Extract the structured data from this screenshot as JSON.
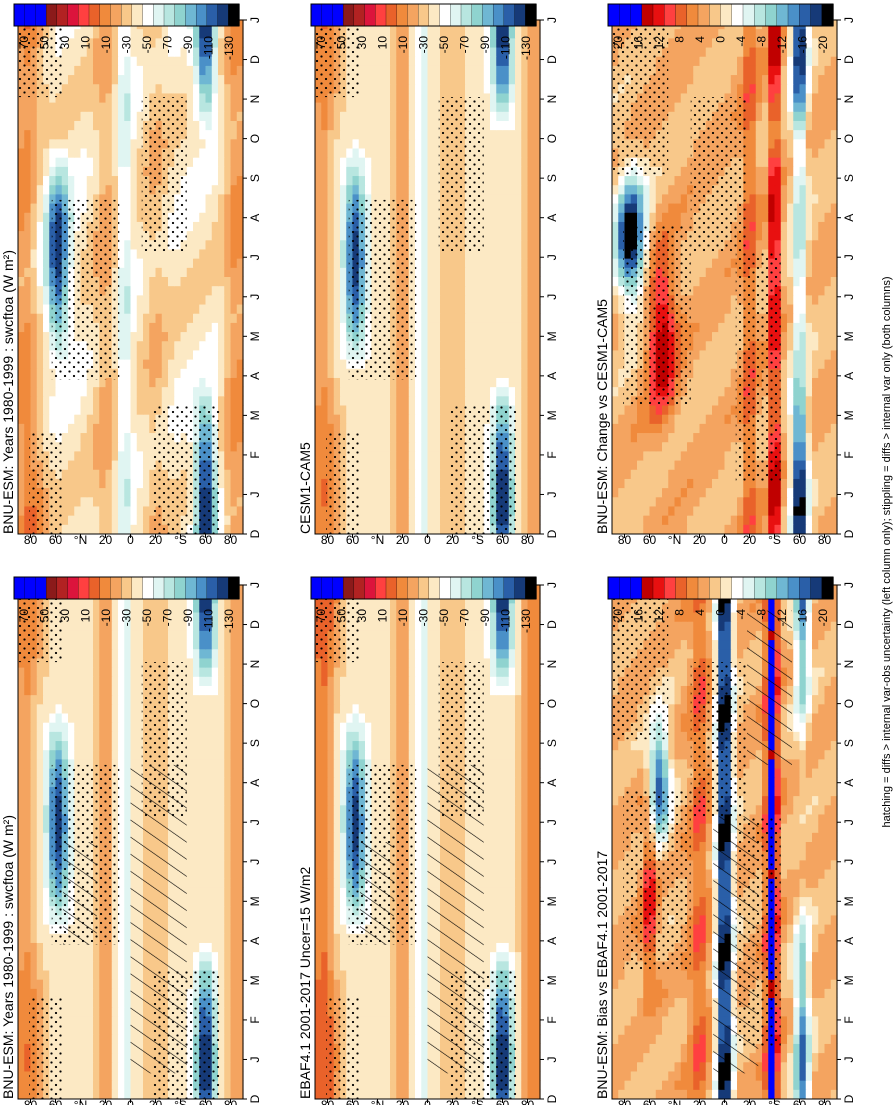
{
  "figure": {
    "footnote": "hatching = diffs > internal var-obs uncertainty (left column only); stippling = diffs > internal var only (both columns)"
  },
  "colors": {
    "abs_palette": [
      "#0000FF",
      "#0000FF",
      "#0000FF",
      "#8B1A1A",
      "#B22222",
      "#DC143C",
      "#FF4040",
      "#E9622A",
      "#F08A3C",
      "#F4A460",
      "#F8C88A",
      "#FCE9C4",
      "#FFFFFF",
      "#E0F5F2",
      "#B8E6E0",
      "#8FD3CF",
      "#6FB7D3",
      "#4A90C8",
      "#2A5FA8",
      "#163A78",
      "#000000"
    ],
    "diff_palette": [
      "#0000FF",
      "#0000FF",
      "#0000FF",
      "#C00000",
      "#E81010",
      "#FF4040",
      "#E9622A",
      "#F08A3C",
      "#F4A460",
      "#F8C88A",
      "#FCE9C4",
      "#FFFFFF",
      "#E0F5F2",
      "#B8E6E0",
      "#8FD3CF",
      "#6FB7D3",
      "#4A90C8",
      "#2A5FA8",
      "#163A78",
      "#000000"
    ]
  },
  "chart_data": [
    {
      "type": "heatmap",
      "panel": "top-left",
      "title": "BNU-ESM: Years 1980-1999 : swcftoa (W m²)",
      "x_tick_labels": [
        "D",
        "J",
        "F",
        "M",
        "A",
        "M",
        "J",
        "J",
        "A",
        "S",
        "O",
        "N",
        "D",
        "J"
      ],
      "y_tick_labels": [
        "80",
        "60",
        "°N",
        "20",
        "0",
        "20",
        "°S",
        "60",
        "80"
      ],
      "y_values": [
        80,
        60,
        40,
        20,
        0,
        -20,
        -40,
        -60,
        -80
      ],
      "colorbar_labels": [
        "70",
        "50",
        "30",
        "10",
        "-10",
        "-30",
        "-50",
        "-70",
        "-90",
        "-110",
        "-130"
      ],
      "stippling": true,
      "hatching": true
    },
    {
      "type": "heatmap",
      "panel": "top-right",
      "title": "BNU-ESM: Years 1980-1999 : swcftoa (W m²)",
      "x_tick_labels": [
        "D",
        "J",
        "F",
        "M",
        "A",
        "M",
        "J",
        "J",
        "A",
        "S",
        "O",
        "N",
        "D",
        "J"
      ],
      "y_tick_labels": [
        "80",
        "60",
        "°N",
        "20",
        "0",
        "20",
        "°S",
        "60",
        "80"
      ],
      "y_values": [
        80,
        60,
        40,
        20,
        0,
        -20,
        -40,
        -60,
        -80
      ],
      "colorbar_labels": [
        "70",
        "50",
        "30",
        "10",
        "-10",
        "-30",
        "-50",
        "-70",
        "-90",
        "-110",
        "-130"
      ],
      "stippling": true,
      "hatching": false
    },
    {
      "type": "heatmap",
      "panel": "middle-left",
      "title": "EBAF4.1 2001-2017 Uncer=15 W/m2",
      "x_tick_labels": [
        "D",
        "J",
        "F",
        "M",
        "A",
        "M",
        "J",
        "J",
        "A",
        "S",
        "O",
        "N",
        "D",
        "J"
      ],
      "y_tick_labels": [
        "80",
        "60",
        "°N",
        "20",
        "0",
        "20",
        "°S",
        "60",
        "80"
      ],
      "y_values": [
        80,
        60,
        40,
        20,
        0,
        -20,
        -40,
        -60,
        -80
      ],
      "colorbar_labels": [
        "70",
        "50",
        "30",
        "10",
        "-10",
        "-30",
        "-50",
        "-70",
        "-90",
        "-110",
        "-130"
      ],
      "stippling": true,
      "hatching": true
    },
    {
      "type": "heatmap",
      "panel": "middle-right",
      "title": "CESM1-CAM5",
      "x_tick_labels": [
        "D",
        "J",
        "F",
        "M",
        "A",
        "M",
        "J",
        "J",
        "A",
        "S",
        "O",
        "N",
        "D",
        "J"
      ],
      "y_tick_labels": [
        "80",
        "60",
        "°N",
        "20",
        "0",
        "20",
        "°S",
        "60",
        "80"
      ],
      "y_values": [
        80,
        60,
        40,
        20,
        0,
        -20,
        -40,
        -60,
        -80
      ],
      "colorbar_labels": [
        "70",
        "50",
        "30",
        "10",
        "-10",
        "-30",
        "-50",
        "-70",
        "-90",
        "-110",
        "-130"
      ],
      "stippling": true,
      "hatching": false
    },
    {
      "type": "heatmap",
      "panel": "bottom-left",
      "title": "BNU-ESM: Bias vs EBAF4.1 2001-2017",
      "x_tick_labels": [
        "D",
        "J",
        "F",
        "M",
        "A",
        "M",
        "J",
        "J",
        "A",
        "S",
        "O",
        "N",
        "D",
        "J"
      ],
      "y_tick_labels": [
        "80",
        "60",
        "°N",
        "20",
        "0",
        "20",
        "°S",
        "60",
        "80"
      ],
      "y_values": [
        80,
        60,
        40,
        20,
        0,
        -20,
        -40,
        -60,
        -80
      ],
      "colorbar_labels": [
        "20",
        "16",
        "12",
        "8",
        "4",
        "0",
        "-4",
        "-8",
        "-12",
        "-16",
        "-20"
      ],
      "stippling": true,
      "hatching": true
    },
    {
      "type": "heatmap",
      "panel": "bottom-right",
      "title": "BNU-ESM: Change vs CESM1-CAM5",
      "x_tick_labels": [
        "D",
        "J",
        "F",
        "M",
        "A",
        "M",
        "J",
        "J",
        "A",
        "S",
        "O",
        "N",
        "D",
        "J"
      ],
      "y_tick_labels": [
        "80",
        "60",
        "°N",
        "20",
        "0",
        "20",
        "°S",
        "60",
        "80"
      ],
      "y_values": [
        80,
        60,
        40,
        20,
        0,
        -20,
        -40,
        -60,
        -80
      ],
      "colorbar_labels": [
        "20",
        "16",
        "12",
        "8",
        "4",
        "0",
        "-4",
        "-8",
        "-12",
        "-16",
        "-20"
      ],
      "stippling": true,
      "hatching": false
    }
  ]
}
